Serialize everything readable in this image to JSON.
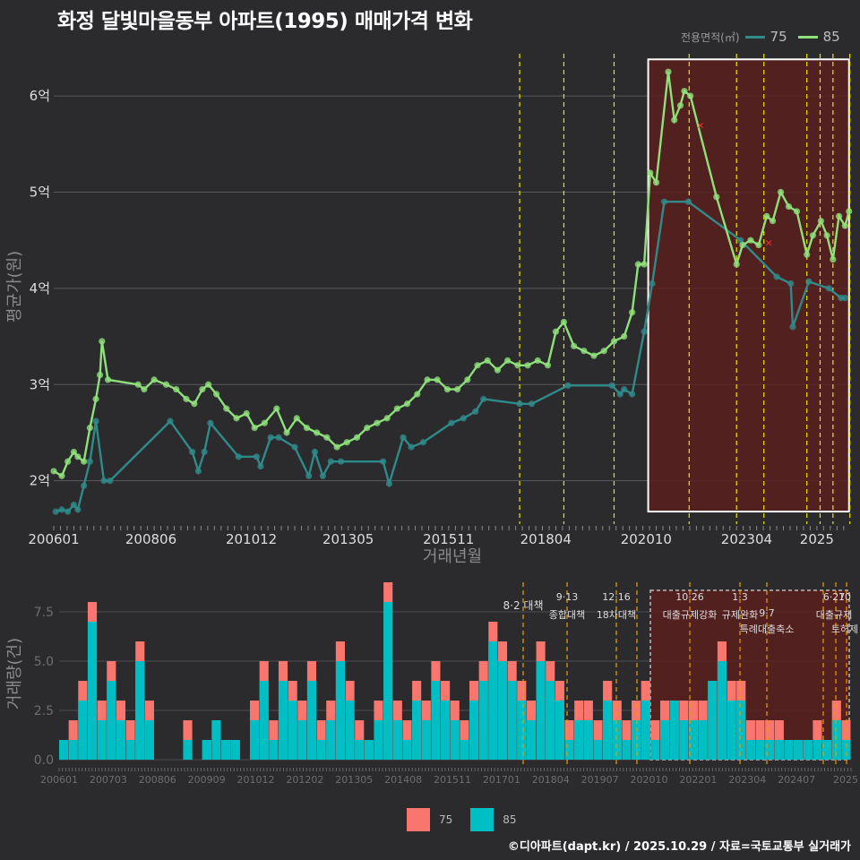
{
  "title": "화정 달빛마을동부 아파트(1995) 매매가격 변화",
  "credit": "©디아파트(dapt.kr) / 2025.10.29 / 자료=국토교통부 실거래가",
  "colors": {
    "background": "#2b2b2d",
    "line75": "#2f8a8a",
    "line85": "#8ee07a",
    "bar75": "#f8766d",
    "bar85": "#00bfc4",
    "highlight": "#5a1f1f",
    "policy": "#e6e600"
  },
  "legend_top": {
    "title": "전용면적(㎡)",
    "items": [
      "75",
      "85"
    ]
  },
  "legend_bottom": {
    "items": [
      "75",
      "85"
    ]
  },
  "chart_data": [
    {
      "type": "line",
      "title": "화정 달빛마을동부 아파트(1995) 매매가격 변화",
      "xlabel": "거래년월",
      "ylabel": "평균가(원)",
      "x_ticks": [
        "200601",
        "200806",
        "201012",
        "201305",
        "201511",
        "201804",
        "202010",
        "202304",
        "2025"
      ],
      "y_ticks": [
        "2억",
        "3억",
        "4억",
        "5억",
        "6억"
      ],
      "ylim": [
        1.55,
        6.55
      ],
      "xlim": [
        2006.0,
        2025.85
      ],
      "policy_lines": [
        2017.6,
        2018.7,
        2019.95,
        2021.82,
        2023.0,
        2023.68,
        2024.75,
        2025.08,
        2025.4,
        2025.82
      ],
      "highlight_range": [
        2020.8,
        2025.8
      ],
      "highlight_y": [
        1.68,
        6.38
      ],
      "series": [
        {
          "name": "75",
          "x": [
            2006.05,
            2006.2,
            2006.35,
            2006.5,
            2006.6,
            2006.75,
            2006.9,
            2007.05,
            2007.25,
            2007.4,
            2008.9,
            2009.45,
            2009.6,
            2009.75,
            2009.9,
            2010.6,
            2011.05,
            2011.15,
            2011.4,
            2011.6,
            2012.0,
            2012.35,
            2012.5,
            2012.7,
            2012.9,
            2013.15,
            2014.2,
            2014.35,
            2014.7,
            2014.9,
            2015.2,
            2015.9,
            2016.2,
            2016.5,
            2016.7,
            2017.6,
            2017.9,
            2018.8,
            2019.9,
            2020.1,
            2020.2,
            2020.4,
            2020.7,
            2020.9,
            2021.2,
            2021.8,
            2023.1,
            2024.0,
            2024.35,
            2024.4,
            2024.8,
            2025.3,
            2025.6,
            2025.7
          ],
          "values": [
            1.68,
            1.7,
            1.68,
            1.75,
            1.7,
            1.95,
            2.2,
            2.62,
            2.0,
            2.0,
            2.62,
            2.3,
            2.1,
            2.3,
            2.6,
            2.25,
            2.25,
            2.15,
            2.45,
            2.45,
            2.35,
            2.05,
            2.3,
            2.05,
            2.2,
            2.2,
            2.2,
            1.97,
            2.45,
            2.35,
            2.4,
            2.6,
            2.65,
            2.72,
            2.85,
            2.8,
            2.8,
            2.99,
            2.99,
            2.9,
            2.95,
            2.9,
            3.55,
            4.05,
            4.9,
            4.9,
            4.5,
            4.12,
            4.05,
            3.6,
            4.07,
            4.0,
            3.9,
            3.9
          ]
        },
        {
          "name": "85",
          "x": [
            2006.0,
            2006.2,
            2006.35,
            2006.5,
            2006.6,
            2006.75,
            2006.9,
            2007.05,
            2007.15,
            2007.2,
            2007.35,
            2008.1,
            2008.25,
            2008.5,
            2008.8,
            2009.05,
            2009.3,
            2009.5,
            2009.7,
            2009.85,
            2010.05,
            2010.3,
            2010.55,
            2010.8,
            2011.0,
            2011.25,
            2011.55,
            2011.8,
            2012.05,
            2012.3,
            2012.55,
            2012.8,
            2013.05,
            2013.3,
            2013.55,
            2013.8,
            2014.05,
            2014.3,
            2014.55,
            2014.8,
            2015.05,
            2015.3,
            2015.55,
            2015.8,
            2016.05,
            2016.3,
            2016.55,
            2016.8,
            2017.05,
            2017.3,
            2017.55,
            2017.8,
            2018.05,
            2018.3,
            2018.5,
            2018.7,
            2018.95,
            2019.2,
            2019.45,
            2019.7,
            2019.95,
            2020.2,
            2020.4,
            2020.55,
            2020.7,
            2020.85,
            2021.0,
            2021.3,
            2021.45,
            2021.6,
            2021.7,
            2021.85,
            2022.5,
            2023.0,
            2023.15,
            2023.35,
            2023.55,
            2023.75,
            2023.9,
            2024.1,
            2024.3,
            2024.5,
            2024.75,
            2024.9,
            2025.1,
            2025.25,
            2025.4,
            2025.55,
            2025.7,
            2025.8
          ],
          "values": [
            2.1,
            2.05,
            2.2,
            2.3,
            2.25,
            2.2,
            2.55,
            2.85,
            3.1,
            3.45,
            3.05,
            3.0,
            2.95,
            3.05,
            3.0,
            2.95,
            2.85,
            2.8,
            2.95,
            3.0,
            2.9,
            2.75,
            2.65,
            2.7,
            2.55,
            2.6,
            2.75,
            2.5,
            2.65,
            2.55,
            2.5,
            2.45,
            2.35,
            2.4,
            2.45,
            2.55,
            2.6,
            2.65,
            2.75,
            2.8,
            2.9,
            3.05,
            3.05,
            2.95,
            2.95,
            3.05,
            3.2,
            3.25,
            3.15,
            3.25,
            3.2,
            3.2,
            3.25,
            3.2,
            3.55,
            3.65,
            3.4,
            3.35,
            3.3,
            3.35,
            3.45,
            3.5,
            3.75,
            4.25,
            4.25,
            5.2,
            5.1,
            6.25,
            5.75,
            5.9,
            6.05,
            6.0,
            4.95,
            4.25,
            4.45,
            4.5,
            4.45,
            4.75,
            4.7,
            5.0,
            4.85,
            4.8,
            4.35,
            4.55,
            4.7,
            4.55,
            4.3,
            4.75,
            4.65,
            4.8
          ]
        }
      ]
    },
    {
      "type": "bar",
      "ylabel": "거래량(건)",
      "x_ticks": [
        "200601",
        "200703",
        "200806",
        "200909",
        "201012",
        "201202",
        "201305",
        "201408",
        "201511",
        "201701",
        "201804",
        "201907",
        "202010",
        "202201",
        "202304",
        "202407",
        "2025"
      ],
      "y_ticks": [
        "0.0",
        "2.5",
        "5.0",
        "7.5"
      ],
      "ylim": [
        0,
        9
      ],
      "annotations": [
        {
          "date": "8·2",
          "label": "대책"
        },
        {
          "date": "9·13",
          "label": "종합대책"
        },
        {
          "date": "12·16",
          "label": "18차대책"
        },
        {
          "date": "10·26",
          "label": "대출규제강화"
        },
        {
          "date": "1·3",
          "label": "규제완화"
        },
        {
          "date": "9·7",
          "label": "특례대출축소"
        },
        {
          "date": "6·27",
          "label": "대출규제"
        },
        {
          "date": "10",
          "label": "토허제"
        }
      ],
      "series": [
        {
          "name": "75",
          "values": [
            1,
            2,
            4,
            8,
            3,
            5,
            3,
            2,
            6,
            3,
            0,
            0,
            0,
            2,
            0,
            1,
            2,
            1,
            1,
            0,
            3,
            5,
            2,
            5,
            4,
            3,
            5,
            2,
            3,
            6,
            4,
            2,
            1,
            3,
            9,
            3,
            2,
            4,
            3,
            5,
            4,
            3,
            2,
            4,
            5,
            7,
            6,
            5,
            4,
            3,
            6,
            5,
            4,
            2,
            3,
            3,
            2,
            4,
            3,
            2,
            3,
            4,
            2,
            3,
            3,
            3,
            3,
            3,
            4,
            6,
            4,
            4,
            2,
            2,
            2,
            2,
            1,
            1,
            1,
            2,
            1,
            3,
            2
          ]
        },
        {
          "name": "85",
          "values": [
            1,
            1,
            3,
            7,
            2,
            4,
            2,
            1,
            5,
            2,
            0,
            0,
            0,
            1,
            0,
            1,
            2,
            1,
            1,
            0,
            2,
            4,
            1,
            4,
            3,
            2,
            4,
            1,
            2,
            5,
            3,
            1,
            1,
            2,
            8,
            2,
            1,
            3,
            2,
            4,
            3,
            2,
            1,
            3,
            4,
            6,
            5,
            4,
            3,
            2,
            5,
            4,
            3,
            1,
            2,
            2,
            1,
            3,
            2,
            1,
            2,
            3,
            1,
            2,
            3,
            2,
            2,
            2,
            4,
            5,
            3,
            3,
            1,
            1,
            1,
            1,
            1,
            1,
            1,
            1,
            1,
            2,
            1
          ]
        }
      ]
    }
  ]
}
